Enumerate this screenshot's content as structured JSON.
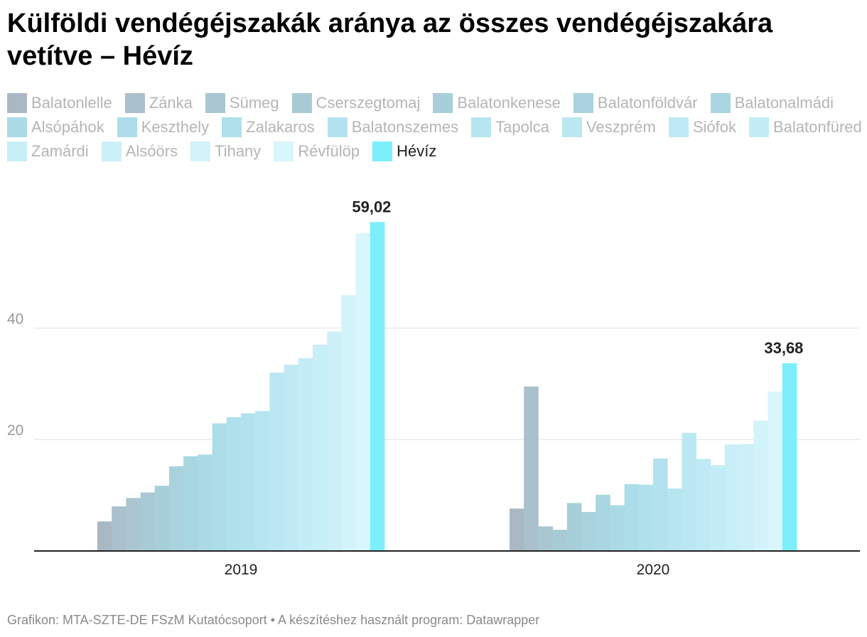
{
  "title": "Külföldi vendégéjszakák aránya az összes vendégéjszakára vetítve – Hévíz",
  "footer": "Grafikon: MTA-SZTE-DE FSzM Kutatócsoport • A készítéshez használt program: Datawrapper",
  "chart_data": {
    "type": "bar",
    "title": "Külföldi vendégéjszakák aránya az összes vendégéjszakára vetítve – Hévíz",
    "xlabel": "",
    "ylabel": "",
    "ylim": [
      0,
      62
    ],
    "yticks": [
      20,
      40
    ],
    "grid": true,
    "legend_position": "top",
    "highlight": "Hévíz",
    "groups": [
      "2019",
      "2020"
    ],
    "series": [
      {
        "name": "Balatonlelle",
        "color": "#aab8c4",
        "values": [
          5.3,
          7.6
        ]
      },
      {
        "name": "Zánka",
        "color": "#aac0cc",
        "values": [
          8.0,
          29.5
        ]
      },
      {
        "name": "Sümeg",
        "color": "#a9c6d1",
        "values": [
          9.5,
          4.4
        ]
      },
      {
        "name": "Cserszegtomaj",
        "color": "#a8cad5",
        "values": [
          10.5,
          3.8
        ]
      },
      {
        "name": "Balatonkenese",
        "color": "#a8ced9",
        "values": [
          11.7,
          8.6
        ]
      },
      {
        "name": "Balatonföldvár",
        "color": "#a9d2de",
        "values": [
          15.2,
          7.0
        ]
      },
      {
        "name": "Balatonalmádi",
        "color": "#a9d6e1",
        "values": [
          17.0,
          10.1
        ]
      },
      {
        "name": "Alsópáhok",
        "color": "#abdae5",
        "values": [
          17.3,
          8.2
        ]
      },
      {
        "name": "Keszthely",
        "color": "#addde8",
        "values": [
          22.9,
          12.0
        ]
      },
      {
        "name": "Zalakaros",
        "color": "#b0e0eb",
        "values": [
          24.0,
          11.9
        ]
      },
      {
        "name": "Balatonszemes",
        "color": "#b3e2ee",
        "values": [
          24.7,
          16.6
        ]
      },
      {
        "name": "Tapolca",
        "color": "#b7e5f0",
        "values": [
          25.1,
          11.2
        ]
      },
      {
        "name": "Veszprém",
        "color": "#bbe7f2",
        "values": [
          32.0,
          21.2
        ]
      },
      {
        "name": "Siófok",
        "color": "#bfe9f4",
        "values": [
          33.4,
          16.5
        ]
      },
      {
        "name": "Balatonfüred",
        "color": "#c3ecf6",
        "values": [
          34.6,
          15.4
        ]
      },
      {
        "name": "Zamárdi",
        "color": "#c8eef7",
        "values": [
          37.0,
          19.1
        ]
      },
      {
        "name": "Alsóörs",
        "color": "#cdf0f8",
        "values": [
          39.4,
          19.2
        ]
      },
      {
        "name": "Tihany",
        "color": "#d2f3f9",
        "values": [
          45.9,
          23.4
        ]
      },
      {
        "name": "Révfülöp",
        "color": "#d8f6fb",
        "values": [
          57.0,
          28.6
        ]
      },
      {
        "name": "Hévíz",
        "color": "#7deffc",
        "values": [
          59.02,
          33.68
        ]
      }
    ],
    "value_labels": [
      {
        "group": "2019",
        "series": "Hévíz",
        "text": "59,02"
      },
      {
        "group": "2020",
        "series": "Hévíz",
        "text": "33,68"
      }
    ]
  }
}
